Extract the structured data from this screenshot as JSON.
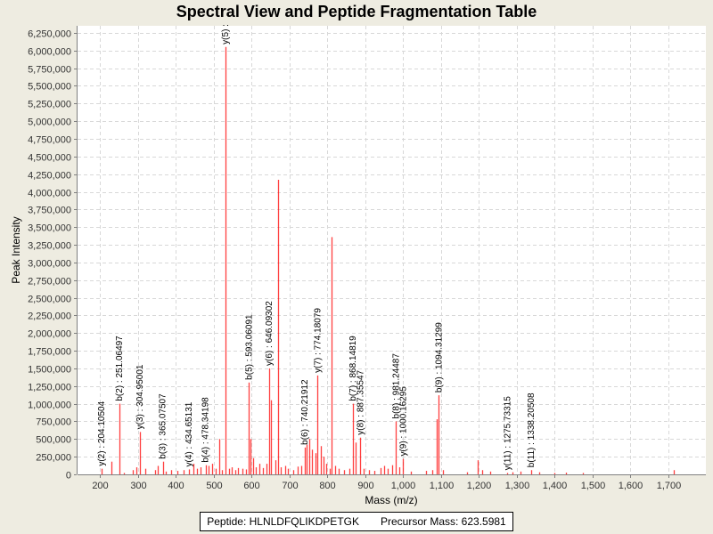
{
  "chart_data": {
    "type": "bar",
    "title": "Spectral View and Peptide Fragmentation Table",
    "xlabel": "Mass (m/z)",
    "ylabel": "Peak Intensity",
    "xlim": [
      140,
      1800
    ],
    "ylim": [
      0,
      6350000
    ],
    "xticks": [
      200,
      300,
      400,
      500,
      600,
      700,
      800,
      900,
      1000,
      1100,
      1200,
      1300,
      1400,
      1500,
      1600,
      1700
    ],
    "xtick_labels": [
      "200",
      "300",
      "400",
      "500",
      "600",
      "700",
      "800",
      "900",
      "1,000",
      "1,100",
      "1,200",
      "1,300",
      "1,400",
      "1,500",
      "1,600",
      "1,700"
    ],
    "yticks": [
      0,
      250000,
      500000,
      750000,
      1000000,
      1250000,
      1500000,
      1750000,
      2000000,
      2250000,
      2500000,
      2750000,
      3000000,
      3250000,
      3500000,
      3750000,
      4000000,
      4250000,
      4500000,
      4750000,
      5000000,
      5250000,
      5500000,
      5750000,
      6000000,
      6250000
    ],
    "ytick_labels": [
      "0",
      "250,000",
      "500,000",
      "750,000",
      "1,000,000",
      "1,250,000",
      "1,500,000",
      "1,750,000",
      "2,000,000",
      "2,250,000",
      "2,500,000",
      "2,750,000",
      "3,000,000",
      "3,250,000",
      "3,500,000",
      "3,750,000",
      "4,000,000",
      "4,250,000",
      "4,500,000",
      "4,750,000",
      "5,000,000",
      "5,250,000",
      "5,500,000",
      "5,750,000",
      "6,000,000",
      "6,250,000"
    ],
    "grid": true,
    "series_color": "#ff0000",
    "peaks": [
      {
        "mz": 204.1,
        "intensity": 80000
      },
      {
        "mz": 230,
        "intensity": 180000
      },
      {
        "mz": 251.06,
        "intensity": 1000000
      },
      {
        "mz": 262,
        "intensity": 20000
      },
      {
        "mz": 285,
        "intensity": 60000
      },
      {
        "mz": 296,
        "intensity": 100000
      },
      {
        "mz": 304.95,
        "intensity": 600000
      },
      {
        "mz": 318,
        "intensity": 80000
      },
      {
        "mz": 345,
        "intensity": 60000
      },
      {
        "mz": 352,
        "intensity": 120000
      },
      {
        "mz": 365.08,
        "intensity": 180000
      },
      {
        "mz": 374,
        "intensity": 40000
      },
      {
        "mz": 388,
        "intensity": 60000
      },
      {
        "mz": 404,
        "intensity": 50000
      },
      {
        "mz": 420,
        "intensity": 60000
      },
      {
        "mz": 434.65,
        "intensity": 70000
      },
      {
        "mz": 445,
        "intensity": 150000
      },
      {
        "mz": 456,
        "intensity": 80000
      },
      {
        "mz": 466,
        "intensity": 100000
      },
      {
        "mz": 478.34,
        "intensity": 130000
      },
      {
        "mz": 486,
        "intensity": 120000
      },
      {
        "mz": 495,
        "intensity": 150000
      },
      {
        "mz": 505,
        "intensity": 80000
      },
      {
        "mz": 514,
        "intensity": 500000
      },
      {
        "mz": 522,
        "intensity": 60000
      },
      {
        "mz": 531,
        "intensity": 6050000
      },
      {
        "mz": 540,
        "intensity": 80000
      },
      {
        "mz": 548,
        "intensity": 100000
      },
      {
        "mz": 556,
        "intensity": 60000
      },
      {
        "mz": 565,
        "intensity": 90000
      },
      {
        "mz": 575,
        "intensity": 80000
      },
      {
        "mz": 584,
        "intensity": 70000
      },
      {
        "mz": 593.06,
        "intensity": 1300000
      },
      {
        "mz": 596,
        "intensity": 500000
      },
      {
        "mz": 603,
        "intensity": 230000
      },
      {
        "mz": 612,
        "intensity": 100000
      },
      {
        "mz": 620,
        "intensity": 150000
      },
      {
        "mz": 630,
        "intensity": 90000
      },
      {
        "mz": 640,
        "intensity": 150000
      },
      {
        "mz": 646.09,
        "intensity": 1500000
      },
      {
        "mz": 652,
        "intensity": 1050000
      },
      {
        "mz": 662,
        "intensity": 200000
      },
      {
        "mz": 670,
        "intensity": 4170000
      },
      {
        "mz": 678,
        "intensity": 100000
      },
      {
        "mz": 688,
        "intensity": 120000
      },
      {
        "mz": 696,
        "intensity": 80000
      },
      {
        "mz": 710,
        "intensity": 60000
      },
      {
        "mz": 722,
        "intensity": 110000
      },
      {
        "mz": 732,
        "intensity": 120000
      },
      {
        "mz": 740.22,
        "intensity": 380000
      },
      {
        "mz": 745,
        "intensity": 420000
      },
      {
        "mz": 752,
        "intensity": 500000
      },
      {
        "mz": 760,
        "intensity": 350000
      },
      {
        "mz": 768,
        "intensity": 300000
      },
      {
        "mz": 774.18,
        "intensity": 1400000
      },
      {
        "mz": 782,
        "intensity": 400000
      },
      {
        "mz": 790,
        "intensity": 250000
      },
      {
        "mz": 798,
        "intensity": 150000
      },
      {
        "mz": 806,
        "intensity": 80000
      },
      {
        "mz": 812,
        "intensity": 3360000
      },
      {
        "mz": 820,
        "intensity": 120000
      },
      {
        "mz": 830,
        "intensity": 80000
      },
      {
        "mz": 845,
        "intensity": 60000
      },
      {
        "mz": 858,
        "intensity": 80000
      },
      {
        "mz": 868.15,
        "intensity": 1000000
      },
      {
        "mz": 874,
        "intensity": 450000
      },
      {
        "mz": 887.36,
        "intensity": 520000
      },
      {
        "mz": 896,
        "intensity": 80000
      },
      {
        "mz": 910,
        "intensity": 60000
      },
      {
        "mz": 925,
        "intensity": 50000
      },
      {
        "mz": 940,
        "intensity": 90000
      },
      {
        "mz": 950,
        "intensity": 120000
      },
      {
        "mz": 960,
        "intensity": 80000
      },
      {
        "mz": 970,
        "intensity": 130000
      },
      {
        "mz": 981.24,
        "intensity": 750000
      },
      {
        "mz": 990,
        "intensity": 100000
      },
      {
        "mz": 1000.16,
        "intensity": 220000
      },
      {
        "mz": 1020,
        "intensity": 40000
      },
      {
        "mz": 1060,
        "intensity": 50000
      },
      {
        "mz": 1078,
        "intensity": 60000
      },
      {
        "mz": 1088,
        "intensity": 780000
      },
      {
        "mz": 1094.31,
        "intensity": 1120000
      },
      {
        "mz": 1105,
        "intensity": 60000
      },
      {
        "mz": 1170,
        "intensity": 30000
      },
      {
        "mz": 1198,
        "intensity": 200000
      },
      {
        "mz": 1210,
        "intensity": 60000
      },
      {
        "mz": 1230,
        "intensity": 40000
      },
      {
        "mz": 1275.73,
        "intensity": 20000
      },
      {
        "mz": 1290,
        "intensity": 30000
      },
      {
        "mz": 1310,
        "intensity": 40000
      },
      {
        "mz": 1338.21,
        "intensity": 60000
      },
      {
        "mz": 1360,
        "intensity": 30000
      },
      {
        "mz": 1400,
        "intensity": 20000
      },
      {
        "mz": 1430,
        "intensity": 25000
      },
      {
        "mz": 1475,
        "intensity": 20000
      },
      {
        "mz": 1715,
        "intensity": 60000
      }
    ],
    "annotations": [
      {
        "label": "y(2) : 204.10504",
        "mz": 204.1,
        "intensity": 80000
      },
      {
        "label": "b(2) : 251.06497",
        "mz": 251.06,
        "intensity": 1000000
      },
      {
        "label": "y(3) : 304.95001",
        "mz": 304.95,
        "intensity": 600000
      },
      {
        "label": "b(3) : 365.07507",
        "mz": 365.08,
        "intensity": 180000
      },
      {
        "label": "y(4) : 434.65131",
        "mz": 434.65,
        "intensity": 70000
      },
      {
        "label": "b(4) : 478.34198",
        "mz": 478.34,
        "intensity": 130000
      },
      {
        "label": "y(5) :",
        "mz": 531,
        "intensity": 6050000
      },
      {
        "label": "b(5) : 593.06091",
        "mz": 593.06,
        "intensity": 1300000
      },
      {
        "label": "y(6) : 646.09302",
        "mz": 646.09,
        "intensity": 1500000
      },
      {
        "label": "b(6) : 740.21912",
        "mz": 740.22,
        "intensity": 380000
      },
      {
        "label": "y(7) : 774.18079",
        "mz": 774.18,
        "intensity": 1400000
      },
      {
        "label": "b(7) : 868.14819",
        "mz": 868.15,
        "intensity": 1000000
      },
      {
        "label": "y(8) : 887.35547",
        "mz": 887.36,
        "intensity": 520000
      },
      {
        "label": "b(8) : 981.24487",
        "mz": 981.24,
        "intensity": 750000
      },
      {
        "label": "y(9) : 1000.16295",
        "mz": 1000.16,
        "intensity": 220000
      },
      {
        "label": "b(9) : 1094.31299",
        "mz": 1094.31,
        "intensity": 1120000
      },
      {
        "label": "y(11) : 1275.73315",
        "mz": 1275.73,
        "intensity": 20000
      },
      {
        "label": "b(11) : 1338.20508",
        "mz": 1338.21,
        "intensity": 60000
      }
    ]
  },
  "legend": {
    "peptide": "Peptide: HLNLDFQLIKDPETGK",
    "precursor": "Precursor Mass: 623.5981"
  }
}
